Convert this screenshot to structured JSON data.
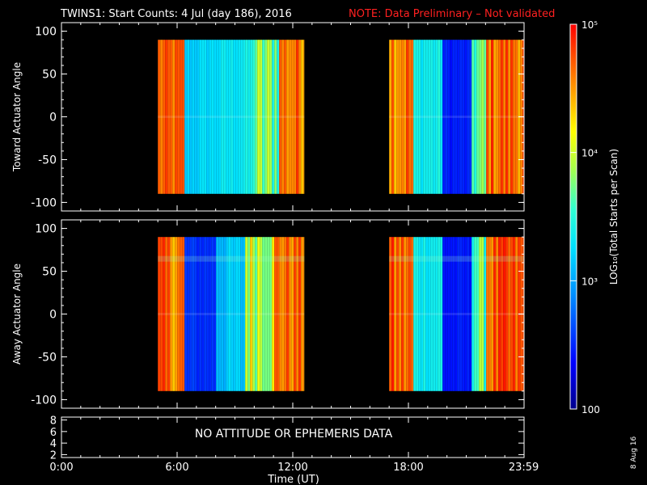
{
  "header": {
    "title": "TWINS1: Start Counts:  4 Jul (day 186), 2016",
    "note": "NOTE: Data Preliminary – Not validated",
    "note_color": "#ff2020"
  },
  "footer": {
    "date_stamp": "8 Aug 16"
  },
  "no_data_message": "NO ATTITUDE OR EPHEMERIS DATA",
  "chart_data": [
    {
      "type": "heatmap",
      "ylabel": "Toward Actuator Angle",
      "ylim": [
        -110,
        110
      ],
      "yticks": [
        100,
        50,
        0,
        -50,
        -100
      ],
      "xlim": [
        0,
        24
      ],
      "data_blocks": [
        {
          "x_start": 5.0,
          "x_end": 12.6,
          "y_range": [
            -90,
            90
          ]
        },
        {
          "x_start": 17.0,
          "x_end": 24.0,
          "y_range": [
            -90,
            90
          ]
        }
      ]
    },
    {
      "type": "heatmap",
      "ylabel": "Away Actuator Angle",
      "ylim": [
        -110,
        110
      ],
      "yticks": [
        100,
        50,
        0,
        -50,
        -100
      ],
      "xlim": [
        0,
        24
      ],
      "data_blocks": [
        {
          "x_start": 5.0,
          "x_end": 12.6,
          "y_range": [
            -90,
            90
          ]
        },
        {
          "x_start": 17.0,
          "x_end": 24.0,
          "y_range": [
            -90,
            90
          ]
        }
      ]
    },
    {
      "type": "line",
      "ylim": [
        1.5,
        8.5
      ],
      "yticks": [
        8,
        6,
        4,
        2
      ],
      "xlim": [
        0,
        24
      ]
    }
  ],
  "x_axis": {
    "label": "Time (UT)",
    "ticks": [
      {
        "value": 0,
        "label": "0:00"
      },
      {
        "value": 6,
        "label": "6:00"
      },
      {
        "value": 12,
        "label": "12:00"
      },
      {
        "value": 18,
        "label": "18:00"
      },
      {
        "value": 23.983,
        "label": "23:59"
      }
    ]
  },
  "colorbar": {
    "label": "LOG₁₀(Total Starts per Scan)",
    "scale": "log",
    "range": [
      100,
      100000
    ],
    "ticks": [
      {
        "value": 100000,
        "label": "10⁵"
      },
      {
        "value": 10000,
        "label": "10⁴"
      },
      {
        "value": 1000,
        "label": "10³"
      },
      {
        "value": 100,
        "label": "100"
      }
    ]
  }
}
